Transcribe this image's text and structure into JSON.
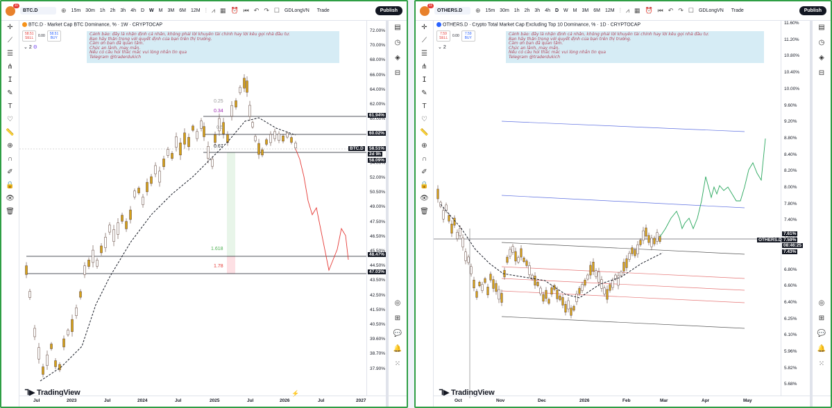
{
  "left": {
    "symbol": "BTC.D",
    "toolbar": {
      "timeframes": [
        "15m",
        "30m",
        "1h",
        "2h",
        "3h",
        "4h",
        "D",
        "W",
        "M",
        "3M",
        "6M",
        "12M"
      ],
      "active": "W",
      "layout_name": "GDLongVN",
      "trade": "Trade",
      "publish": "Publish",
      "avatar_badge": "11"
    },
    "title": "BTC.D · Market Cap BTC Dominance, % · 1W · CRYPTOCAP",
    "sell": {
      "price": "58.51",
      "label": "SELL"
    },
    "spread": "0.00",
    "buy": {
      "price": "58.51",
      "label": "BUY"
    },
    "indicators_count": "2",
    "note": "Cảnh báo: đây là nhận định cá nhân, không phải lời khuyên tài chính hay lời kêu gọi nhà đầu tư.\nBạn hãy thận trọng với quyết định của bạn trên thị trường.\nCảm ơn bạn đã quan tâm.\nChúc an lành, may mắn.\nNếu có câu hỏi thắc mắc vui lòng nhắn tin qua\nTelegram @traderdukich",
    "fib_labels": [
      "0.25",
      "0.34",
      "0.5",
      "0.67",
      "1.618",
      "1.78"
    ],
    "y_ticks": [
      "72.00%",
      "70.00%",
      "68.00%",
      "66.00%",
      "64.00%",
      "62.00%",
      "60.00%",
      "58.00%",
      "56.00%",
      "54.00%",
      "52.00%",
      "50.50%",
      "49.00%",
      "47.50%",
      "46.50%",
      "45.50%",
      "44.50%",
      "43.50%",
      "42.50%",
      "41.50%",
      "40.50%",
      "39.60%",
      "38.70%",
      "37.90%"
    ],
    "price_labels": [
      "61.94%",
      "60.02%",
      "58.51%",
      "58.09%",
      "48.47%",
      "47.03%"
    ],
    "current_symbol": "BTC.D",
    "countdown": "2d 9h",
    "x_ticks": [
      "Jul",
      "2023",
      "Jul",
      "2024",
      "Jul",
      "2025",
      "Jul",
      "2026",
      "Jul",
      "2027"
    ],
    "logo": "TradingView",
    "right_badges": {
      "alerts": "8",
      "notifications": "99+",
      "chat": "11"
    }
  },
  "right": {
    "symbol": "OTHERS.D",
    "toolbar": {
      "timeframes": [
        "15m",
        "30m",
        "1h",
        "2h",
        "3h",
        "4h",
        "D",
        "W",
        "M",
        "3M",
        "6M",
        "12M"
      ],
      "active": "D",
      "layout_name": "GDLongVN",
      "trade": "Trade",
      "publish": "Publish",
      "avatar_badge": "11"
    },
    "title": "OTHERS.D · Crypto Total Market Cap Excluding Top 10 Dominance, % · 1D · CRYPTOCAP",
    "sell": {
      "price": "7.59",
      "label": "SELL"
    },
    "spread": "0.00",
    "buy": {
      "price": "7.59",
      "label": "BUY"
    },
    "indicators_count": "2",
    "note": "Cảnh báo: đây là nhận định cá nhân, không phải lời khuyên tài chính hay lời kêu gọi nhà đầu tư.\nBạn hãy thận trọng với quyết định của bạn trên thị trường.\nCảm ơn bạn đã quan tâm.\nChúc an lành, may mắn.\nNếu có câu hỏi thắc mắc vui lòng nhắn tin qua\nTelegram @traderdukich",
    "y_ticks": [
      "11.60%",
      "11.20%",
      "10.80%",
      "10.40%",
      "10.00%",
      "9.60%",
      "9.20%",
      "8.80%",
      "8.40%",
      "8.20%",
      "8.00%",
      "7.80%",
      "7.40%",
      "7.20%",
      "7.00%",
      "6.80%",
      "6.60%",
      "6.40%",
      "6.25%",
      "6.10%",
      "5.96%",
      "5.82%",
      "5.68%"
    ],
    "price_labels": [
      "7.61%",
      "7.59%",
      "7.43%"
    ],
    "current_symbol": "OTHERS.D",
    "countdown": "08:46:25",
    "x_ticks": [
      "Oct",
      "Nov",
      "Dec",
      "2026",
      "Feb",
      "Mar",
      "Apr",
      "May"
    ],
    "logo": "TradingView",
    "right_badges": {
      "alerts": "8",
      "notifications": "99+",
      "chat": "11"
    }
  },
  "colors": {
    "frame": "#2e9e44",
    "up": "#26a69a",
    "down": "#ef5350",
    "candle": "#d4a017",
    "projection_btc": "#e53935",
    "projection_others": "#26a65b",
    "channel_blue": "#5b6ee1",
    "channel_red": "#e57373"
  }
}
